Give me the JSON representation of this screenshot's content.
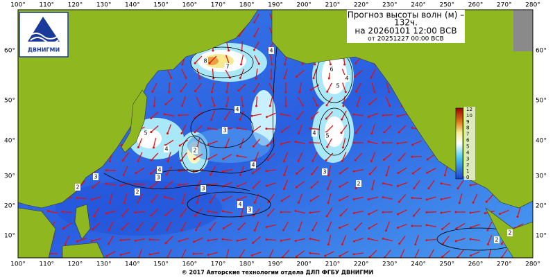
{
  "header": {
    "title": "Прогноз высоты волн (м) –",
    "lead": "132ч.",
    "valid": "на 20260101 12:00 ВСВ",
    "issued": "от 20251227 00:00 ВСВ"
  },
  "logo": {
    "text": "ДВНИГМИ"
  },
  "axes": {
    "lon_top": [
      "100°",
      "110°",
      "120°",
      "130°",
      "140°",
      "150°",
      "160°",
      "170°",
      "180°",
      "190°",
      "200°",
      "210°",
      "220°",
      "230°",
      "240°",
      "250°",
      "260°",
      "270°",
      "280°"
    ],
    "lon_bottom": [
      "100°",
      "110°",
      "120°",
      "130°",
      "140°",
      "150°",
      "160°",
      "170°",
      "180°",
      "190°",
      "200°",
      "210°",
      "220°",
      "230°",
      "240°",
      "250°",
      "260°",
      "270°",
      "280°"
    ],
    "lat_left": [
      "60°",
      "50°",
      "40°",
      "30°",
      "20°",
      "10°"
    ],
    "lat_right": [
      "60°",
      "50°",
      "40°",
      "30°",
      "20°",
      "10°"
    ]
  },
  "colorbar": {
    "labels": [
      "12",
      "10",
      "9",
      "8",
      "7",
      "6",
      "5",
      "4",
      "3",
      "2",
      "1",
      "0"
    ]
  },
  "contour_labels": [
    "8",
    "7",
    "4",
    "6",
    "5",
    "4",
    "3",
    "5",
    "4",
    "4",
    "3",
    "4",
    "2",
    "4",
    "3",
    "2",
    "3",
    "4",
    "2",
    "2",
    "2",
    "5",
    "4",
    "3",
    "3",
    "2"
  ],
  "footer": "© 2017 Авторские технологии отдела ДЛП ФГБУ ДВНИГМИ"
}
